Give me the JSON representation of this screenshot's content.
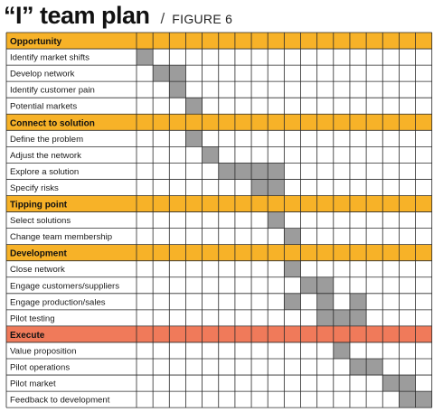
{
  "header": {
    "title": "“I” team plan",
    "separator": "/",
    "figure": "FIGURE 6"
  },
  "colors": {
    "section_default": "#f7b228",
    "section_execute": "#f07a5a",
    "bar": "#9c9c9c",
    "grid": "#2a2a2a",
    "cell": "#ffffff"
  },
  "chart_data": {
    "type": "gantt",
    "columns": 18,
    "rows": [
      {
        "kind": "section",
        "label": "Opportunity",
        "color": "#f7b228"
      },
      {
        "kind": "task",
        "label": "Identify market shifts",
        "filled": [
          0
        ]
      },
      {
        "kind": "task",
        "label": "Develop network",
        "filled": [
          1,
          2
        ]
      },
      {
        "kind": "task",
        "label": "Identify customer pain",
        "filled": [
          2
        ]
      },
      {
        "kind": "task",
        "label": "Potential markets",
        "filled": [
          3
        ]
      },
      {
        "kind": "section",
        "label": "Connect to solution",
        "color": "#f7b228"
      },
      {
        "kind": "task",
        "label": "Define the problem",
        "filled": [
          3
        ]
      },
      {
        "kind": "task",
        "label": "Adjust the network",
        "filled": [
          4
        ]
      },
      {
        "kind": "task",
        "label": "Explore a solution",
        "filled": [
          5,
          6,
          7,
          8
        ]
      },
      {
        "kind": "task",
        "label": "Specify risks",
        "filled": [
          7,
          8
        ]
      },
      {
        "kind": "section",
        "label": "Tipping point",
        "color": "#f7b228"
      },
      {
        "kind": "task",
        "label": "Select solutions",
        "filled": [
          8
        ]
      },
      {
        "kind": "task",
        "label": "Change team membership",
        "filled": [
          9
        ]
      },
      {
        "kind": "section",
        "label": "Development",
        "color": "#f7b228"
      },
      {
        "kind": "task",
        "label": "Close network",
        "filled": [
          9
        ]
      },
      {
        "kind": "task",
        "label": "Engage customers/suppliers",
        "filled": [
          10,
          11
        ]
      },
      {
        "kind": "task",
        "label": "Engage production/sales",
        "filled": [
          9,
          11,
          13
        ]
      },
      {
        "kind": "task",
        "label": "Pilot testing",
        "filled": [
          11,
          12,
          13
        ]
      },
      {
        "kind": "section",
        "label": "Execute",
        "color": "#f07a5a"
      },
      {
        "kind": "task",
        "label": "Value proposition",
        "filled": [
          12
        ]
      },
      {
        "kind": "task",
        "label": "Pilot operations",
        "filled": [
          13,
          14
        ]
      },
      {
        "kind": "task",
        "label": "Pilot market",
        "filled": [
          15,
          16
        ]
      },
      {
        "kind": "task",
        "label": "Feedback to development",
        "filled": [
          16,
          17
        ]
      }
    ]
  }
}
